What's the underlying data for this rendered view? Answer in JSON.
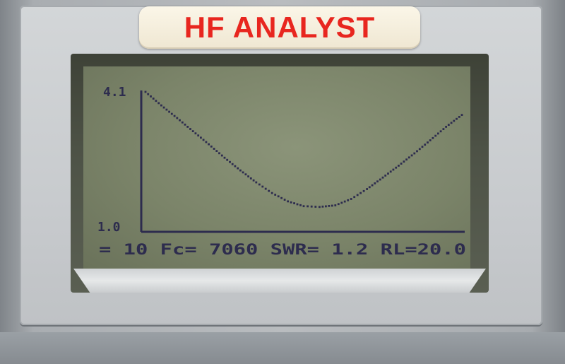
{
  "device": {
    "brand_title": "HF ANALYST"
  },
  "chart_data": {
    "type": "line",
    "title": "",
    "xlabel": "",
    "ylabel": "",
    "ylim": [
      1.0,
      4.1
    ],
    "y_ticks": [
      "4.1",
      "1.0"
    ],
    "series": [
      {
        "x": [
          0,
          5,
          10,
          15,
          20,
          25,
          30,
          35,
          40,
          45,
          50,
          55,
          60,
          65,
          70,
          75,
          80,
          85,
          90,
          95,
          100
        ],
        "values": [
          4.1,
          3.76,
          3.44,
          3.11,
          2.78,
          2.44,
          2.12,
          1.82,
          1.55,
          1.34,
          1.22,
          1.2,
          1.24,
          1.4,
          1.65,
          1.94,
          2.24,
          2.55,
          2.88,
          3.22,
          3.52
        ]
      }
    ],
    "color": "#2d2c4e",
    "grid": false
  },
  "status_line": {
    "text": "= 10  Fc= 7060  SWR= 1.2  RL=20.0"
  }
}
